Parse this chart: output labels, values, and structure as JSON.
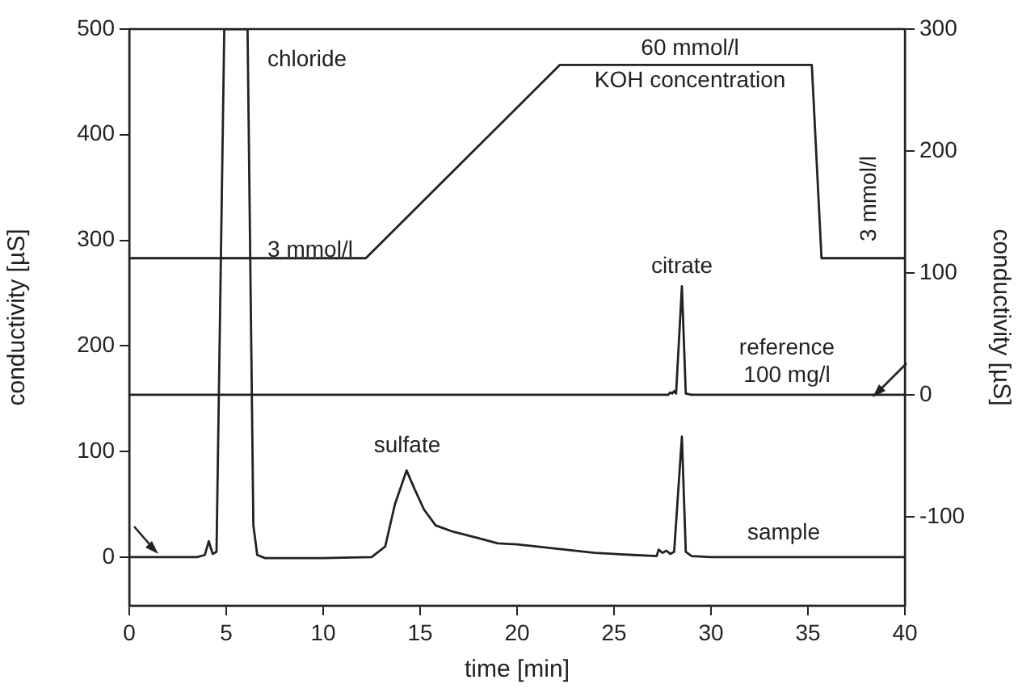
{
  "chart_data": {
    "type": "line",
    "xlabel": "time [min]",
    "ylabel": "conductivity [µS]",
    "y2label": "conductivity [µS]",
    "xlim": [
      0,
      40
    ],
    "xticks": [
      0,
      5,
      10,
      15,
      20,
      25,
      30,
      35,
      40
    ],
    "ylim": [
      -46,
      500
    ],
    "yticks": [
      0,
      100,
      200,
      300,
      400,
      500
    ],
    "y2lim": [
      -173,
      300
    ],
    "y2ticks": [
      -100,
      0,
      100,
      200,
      300
    ],
    "grid": false,
    "legend": false,
    "marker": "none",
    "line_style": "solid",
    "series": [
      {
        "color": "#222222",
        "x": [
          0,
          3.5,
          3.9,
          4.1,
          4.3,
          4.5,
          4.9,
          6.1,
          6.4,
          6.6,
          7,
          10,
          12.5,
          13.2,
          13.7,
          14.3,
          14.7,
          15.2,
          15.8,
          16.7,
          18,
          19,
          20,
          22,
          24,
          26,
          27.2,
          27.3,
          27.5,
          27.7,
          27.9,
          28.1,
          28.5,
          28.7,
          29,
          30,
          40
        ],
        "values": [
          0,
          0,
          2,
          15,
          3,
          5,
          500,
          500,
          30,
          2,
          -1,
          -1,
          0,
          10,
          50,
          82,
          65,
          45,
          30,
          24,
          18,
          13,
          12,
          8,
          4,
          2,
          1,
          7,
          4,
          6,
          3,
          5,
          114,
          5,
          1,
          0,
          0
        ]
      },
      {
        "color": "#222222",
        "axis": "y2",
        "x": [
          0,
          27.8,
          27.9,
          28.0,
          28.1,
          28.2,
          28.5,
          28.7,
          29,
          40
        ],
        "values": [
          0,
          0,
          2,
          1,
          3,
          1,
          89,
          1,
          0,
          0
        ]
      },
      {
        "color": "#222222",
        "x": [
          0,
          12.2,
          22.2,
          35.2,
          35.7,
          40
        ],
        "values": [
          283,
          283,
          466,
          466,
          283,
          283
        ]
      }
    ],
    "annotations": [
      "chloride",
      "sulfate",
      "citrate",
      "reference\n100 mg/l",
      "sample",
      "3 mmol/l",
      "60 mmol/l",
      "KOH concentration",
      "3 mmol/l"
    ]
  }
}
